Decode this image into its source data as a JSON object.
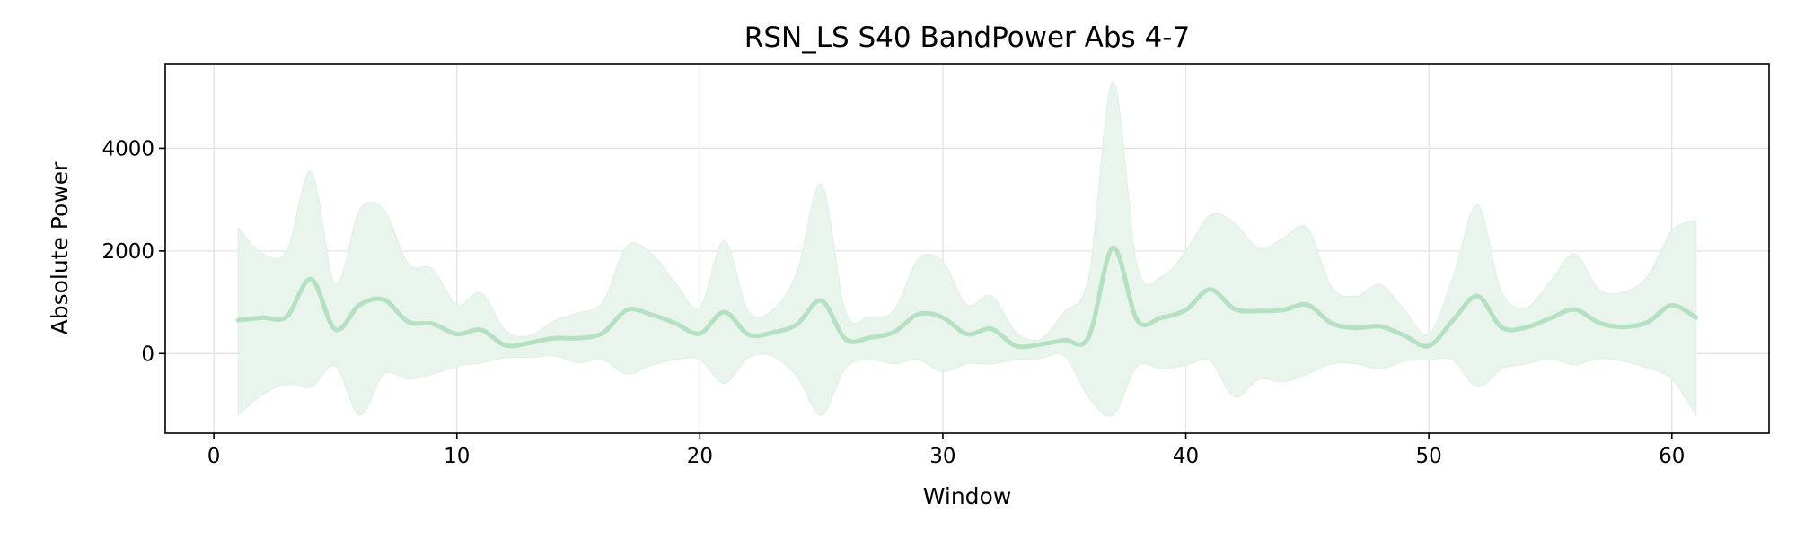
{
  "chart_data": {
    "type": "line",
    "title": "RSN_LS S40 BandPower Abs 4-7",
    "xlabel": "Window",
    "ylabel": "Absolute Power",
    "xlim": [
      -2,
      64
    ],
    "ylim": [
      -1550,
      5650
    ],
    "xticks": [
      0,
      10,
      20,
      30,
      40,
      50,
      60
    ],
    "yticks": [
      0,
      2000,
      4000
    ],
    "grid": true,
    "legend": "none",
    "colors": {
      "line": "#b5e0c2",
      "band": "#e9f5ec",
      "grid": "#e3e3e3"
    },
    "series": [
      {
        "x": [
          1,
          2,
          3,
          4,
          5,
          6,
          7,
          8,
          9,
          10,
          11,
          12,
          13,
          14,
          15,
          16,
          17,
          18,
          19,
          20,
          21,
          22,
          23,
          24,
          25,
          26,
          27,
          28,
          29,
          30,
          31,
          32,
          33,
          34,
          35,
          36,
          37,
          38,
          39,
          40,
          41,
          42,
          43,
          44,
          45,
          46,
          47,
          48,
          49,
          50,
          51,
          52,
          53,
          54,
          55,
          56,
          57,
          58,
          59,
          60,
          61
        ],
        "mean": [
          650,
          700,
          720,
          1450,
          470,
          950,
          1050,
          620,
          580,
          380,
          460,
          160,
          210,
          300,
          300,
          400,
          850,
          760,
          590,
          390,
          810,
          370,
          410,
          570,
          1030,
          280,
          310,
          420,
          770,
          700,
          380,
          480,
          150,
          180,
          260,
          320,
          2060,
          650,
          700,
          850,
          1250,
          870,
          830,
          850,
          950,
          590,
          500,
          530,
          350,
          150,
          650,
          1120,
          510,
          510,
          690,
          860,
          600,
          520,
          610,
          940,
          700
        ],
        "upper": [
          2450,
          1950,
          2000,
          3550,
          1350,
          2800,
          2800,
          1750,
          1650,
          950,
          1180,
          450,
          350,
          640,
          800,
          1000,
          2100,
          1950,
          1370,
          900,
          2200,
          830,
          850,
          1600,
          3300,
          810,
          720,
          850,
          1850,
          1800,
          950,
          1130,
          420,
          280,
          820,
          1500,
          5300,
          1700,
          1500,
          2000,
          2700,
          2550,
          2050,
          2250,
          2450,
          1300,
          1120,
          1350,
          850,
          380,
          1500,
          2900,
          1200,
          900,
          1400,
          1950,
          1250,
          1200,
          1500,
          2400,
          2600
        ],
        "lower": [
          -1200,
          -800,
          -600,
          -650,
          -250,
          -1200,
          -400,
          -500,
          -400,
          -250,
          -180,
          -80,
          -80,
          -40,
          -180,
          -120,
          -400,
          -230,
          -120,
          -120,
          -580,
          -80,
          -50,
          -450,
          -1200,
          -280,
          -120,
          -200,
          -120,
          -350,
          -200,
          -200,
          -120,
          -100,
          -50,
          -850,
          -1200,
          -250,
          -300,
          -230,
          -150,
          -850,
          -500,
          -550,
          -400,
          -200,
          -200,
          -300,
          -150,
          -120,
          -130,
          -650,
          -300,
          -200,
          -100,
          -220,
          -100,
          -150,
          -280,
          -500,
          -1200
        ]
      }
    ]
  }
}
